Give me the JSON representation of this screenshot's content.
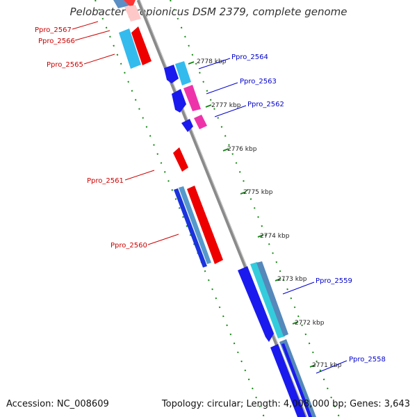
{
  "title": "Pelobacter propionicus DSM 2379, complete genome",
  "footer": {
    "accession": "Accession: NC_008609",
    "summary": "Topology: circular; Length: 4,008,000 bp; Genes: 3,643"
  },
  "colors": {
    "forward_gene": "#ff0000",
    "reverse_gene": "#0000ee",
    "label_forward": "#cc0000",
    "label_reverse": "#0000cc",
    "backbone": "#888888",
    "ticks": "#118811",
    "rna_pink": "#ee33aa",
    "cyan": "#33bbee"
  },
  "ticks": [
    "2778 kbp",
    "2777 kbp",
    "2776 kbp",
    "2775 kbp",
    "2774 kbp",
    "2773 kbp",
    "2772 kbp",
    "2771 kbp"
  ],
  "labels_left": [
    "Ppro_2567",
    "Ppro_2566",
    "Ppro_2565",
    "Ppro_2561",
    "Ppro_2560"
  ],
  "labels_right": [
    "Ppro_2564",
    "Ppro_2563",
    "Ppro_2562",
    "Ppro_2559",
    "Ppro_2558"
  ]
}
